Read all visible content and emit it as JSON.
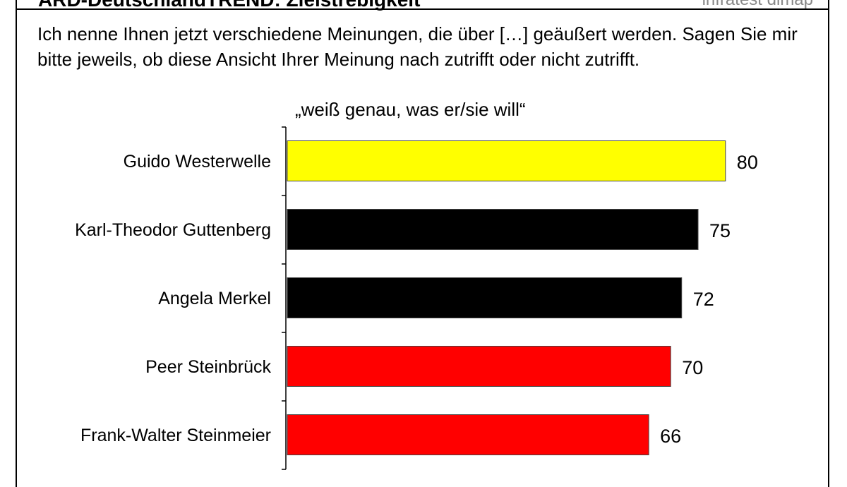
{
  "header": {
    "title": "ARD-DeutschlandTREND: Zielstrebigkeit",
    "brand": "infratest dimap"
  },
  "question": "Ich nenne Ihnen jetzt verschiedene Meinungen, die über […] geäußert werden. Sagen Sie mir bitte jeweils, ob diese Ansicht Ihrer Meinung nach zutrifft oder nicht zutrifft.",
  "chart_data": {
    "type": "bar",
    "orientation": "horizontal",
    "title": "„weiß genau, was er/sie will“",
    "categories": [
      "Guido Westerwelle",
      "Karl-Theodor Guttenberg",
      "Angela Merkel",
      "Peer Steinbrück",
      "Frank-Walter Steinmeier"
    ],
    "values": [
      80,
      75,
      72,
      70,
      66
    ],
    "colors": [
      "#ffff00",
      "#000000",
      "#000000",
      "#ff0000",
      "#ff0000"
    ],
    "grid": false,
    "legend": "none"
  }
}
